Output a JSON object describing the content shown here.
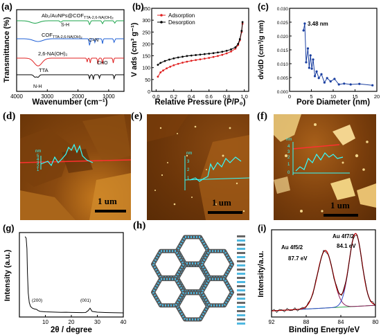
{
  "panels": {
    "a": {
      "label": "(a)"
    },
    "b": {
      "label": "(b)"
    },
    "c": {
      "label": "(c)"
    },
    "d": {
      "label": "(d)",
      "scale": "1 um"
    },
    "e": {
      "label": "(e)",
      "scale": "1 um"
    },
    "f": {
      "label": "(f)",
      "scale": "1 um"
    },
    "g": {
      "label": "(g)"
    },
    "h": {
      "label": "(h)"
    },
    "i": {
      "label": "(i)"
    }
  },
  "afm_inset": {
    "unit": "nm",
    "ticks": [
      "5",
      "4",
      "3",
      "2",
      "1",
      "0"
    ]
  },
  "chart_data": [
    {
      "id": "a",
      "type": "line",
      "xlabel": "Wavenumber (cm⁻¹)",
      "ylabel": "Transmittance (%)",
      "xlim": [
        4000,
        500
      ],
      "xticks": [
        4000,
        3000,
        2000,
        1000
      ],
      "series": [
        {
          "name": "Ab₂/AuNPs@COF",
          "sub": "TTA-2,6-NA(OH)₂",
          "color": "#1aa34a"
        },
        {
          "name": "COF",
          "sub": "TTA-2,6-NA(OH)₂",
          "color": "#1e5fd6"
        },
        {
          "name": "2,6-NA(OH)₂",
          "color": "#e02020"
        },
        {
          "name": "TTA",
          "color": "#000000"
        }
      ],
      "annotations": [
        "S-H",
        "C=N",
        "CHO",
        "N-H"
      ]
    },
    {
      "id": "b",
      "type": "line",
      "xlabel": "Relative Pressure (P/P₀)",
      "ylabel": "V ads (cm³ g⁻¹)",
      "xlim": [
        -0.05,
        1.05
      ],
      "ylim": [
        0,
        350
      ],
      "xticks": [
        0.0,
        0.2,
        0.4,
        0.6,
        0.8,
        1.0
      ],
      "yticks": [
        0,
        50,
        100,
        150,
        200,
        250,
        300,
        350
      ],
      "series": [
        {
          "name": "Adsorption",
          "color": "#e02020",
          "x": [
            0.02,
            0.05,
            0.08,
            0.12,
            0.16,
            0.2,
            0.25,
            0.3,
            0.35,
            0.4,
            0.45,
            0.5,
            0.55,
            0.6,
            0.65,
            0.7,
            0.75,
            0.8,
            0.85,
            0.9,
            0.93,
            0.95,
            0.97,
            0.98
          ],
          "y": [
            62,
            80,
            88,
            97,
            104,
            110,
            116,
            121,
            125,
            129,
            132,
            135,
            138,
            141,
            145,
            149,
            154,
            160,
            168,
            180,
            195,
            215,
            250,
            285
          ]
        },
        {
          "name": "Desorption",
          "color": "#000000",
          "x": [
            0.02,
            0.05,
            0.1,
            0.15,
            0.2,
            0.25,
            0.3,
            0.35,
            0.4,
            0.45,
            0.5,
            0.55,
            0.6,
            0.65,
            0.7,
            0.75,
            0.8,
            0.85,
            0.9,
            0.93,
            0.95,
            0.97,
            0.98
          ],
          "y": [
            112,
            120,
            128,
            134,
            139,
            143,
            146,
            149,
            151,
            153,
            155,
            157,
            159,
            161,
            164,
            167,
            171,
            177,
            186,
            200,
            220,
            255,
            292
          ]
        }
      ]
    },
    {
      "id": "c",
      "type": "line",
      "xlabel": "Pore Diameter (nm)",
      "ylabel": "dv/dD (cm³/g nm)",
      "xlim": [
        0,
        20
      ],
      "ylim": [
        0,
        0.03
      ],
      "xticks": [
        0,
        5,
        10,
        15,
        20
      ],
      "yticks": [
        0.0,
        0.005,
        0.01,
        0.015,
        0.02,
        0.025,
        0.03
      ],
      "annotations": [
        "3.48 nm"
      ],
      "series": [
        {
          "name": "",
          "color": "#1a3fa0",
          "x": [
            3.2,
            3.48,
            3.8,
            4.2,
            4.5,
            4.8,
            5.1,
            5.4,
            5.8,
            6.2,
            6.7,
            7.3,
            8.0,
            8.6,
            9.4,
            10.3,
            11.3,
            12.5,
            14.0,
            16.0,
            19.0
          ],
          "y": [
            0.022,
            0.0245,
            0.0105,
            0.0155,
            0.0085,
            0.013,
            0.0082,
            0.0115,
            0.0055,
            0.0072,
            0.0048,
            0.0062,
            0.0032,
            0.0048,
            0.0036,
            0.0045,
            0.0025,
            0.0028,
            0.0025,
            0.0027,
            0.0022
          ]
        }
      ]
    },
    {
      "id": "g",
      "type": "line",
      "xlabel": "2θ / degree",
      "ylabel": "Intensity (a.u.)",
      "xlim": [
        0,
        40
      ],
      "xticks": [
        10,
        20,
        30,
        40
      ],
      "annotations": [
        "(200)",
        "(001)"
      ],
      "series": [
        {
          "name": "",
          "color": "#000000",
          "x": [
            2.2,
            2.6,
            2.9,
            3.1,
            3.4,
            3.8,
            4.3,
            5.0,
            5.8,
            6.6,
            7.2,
            8.0,
            10,
            12,
            14,
            16,
            18,
            20,
            22,
            24,
            25.5,
            26.5,
            27.2,
            28,
            30,
            33,
            36,
            40
          ],
          "y": [
            100,
            98,
            85,
            55,
            30,
            18,
            13,
            11,
            10,
            9.5,
            8,
            7,
            6.5,
            6.2,
            6,
            5.8,
            5.9,
            5.7,
            5.6,
            5.5,
            5.6,
            8,
            11,
            7,
            6,
            5.6,
            5.4,
            5.2
          ]
        }
      ]
    },
    {
      "id": "i",
      "type": "line",
      "xlabel": "Binding Energy/eV",
      "ylabel": "Intensity/a.u.",
      "xlim": [
        92,
        80
      ],
      "xticks": [
        92,
        88,
        84,
        80
      ],
      "annotations": [
        "Au 4f5/2",
        "87.7 eV",
        "Au 4f7/2",
        "84.1 eV"
      ],
      "series": [
        {
          "name": "",
          "color": "#c00000"
        },
        {
          "name": "",
          "color": "#8a1c5a"
        },
        {
          "name": "",
          "color": "#2f49c8"
        },
        {
          "name": "",
          "color": "#2fa44a"
        }
      ]
    }
  ]
}
